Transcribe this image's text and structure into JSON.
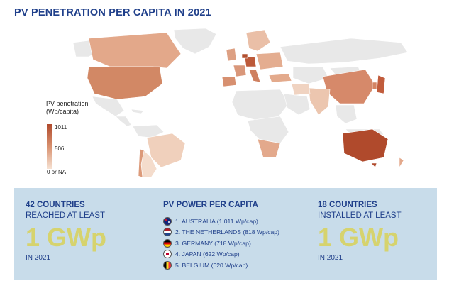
{
  "title": "PV PENETRATION PER CAPITA IN 2021",
  "legend": {
    "title_line1": "PV penetration",
    "title_line2": "(Wp/capita)",
    "max": "1011",
    "mid": "506",
    "min": "0 or NA"
  },
  "map": {
    "colors": {
      "high": "#b04a2c",
      "mid": "#d8916f",
      "low": "#f6e2d3",
      "na": "#e8e8e8",
      "border": "#ffffff"
    }
  },
  "left_stat": {
    "headline": "42 COUNTRIES",
    "subline": "REACHED AT LEAST",
    "value": "1 GWp",
    "year": "IN 2021"
  },
  "ranking": {
    "headline": "PV POWER PER CAPITA",
    "items": [
      {
        "label": "1. AUSTRALIA (1 011 Wp/cap)",
        "flag": "australia-flag-icon"
      },
      {
        "label": "2. THE NETHERLANDS (818 Wp/cap)",
        "flag": "netherlands-flag-icon"
      },
      {
        "label": "3. GERMANY (718 Wp/cap)",
        "flag": "germany-flag-icon"
      },
      {
        "label": "4. JAPAN (622 Wp/cap)",
        "flag": "japan-flag-icon"
      },
      {
        "label": "5. BELGIUM (620 Wp/cap)",
        "flag": "belgium-flag-icon"
      }
    ]
  },
  "right_stat": {
    "headline": "18 COUNTRIES",
    "subline": "INSTALLED AT LEAST",
    "value": "1 GWp",
    "year": "IN 2021"
  }
}
